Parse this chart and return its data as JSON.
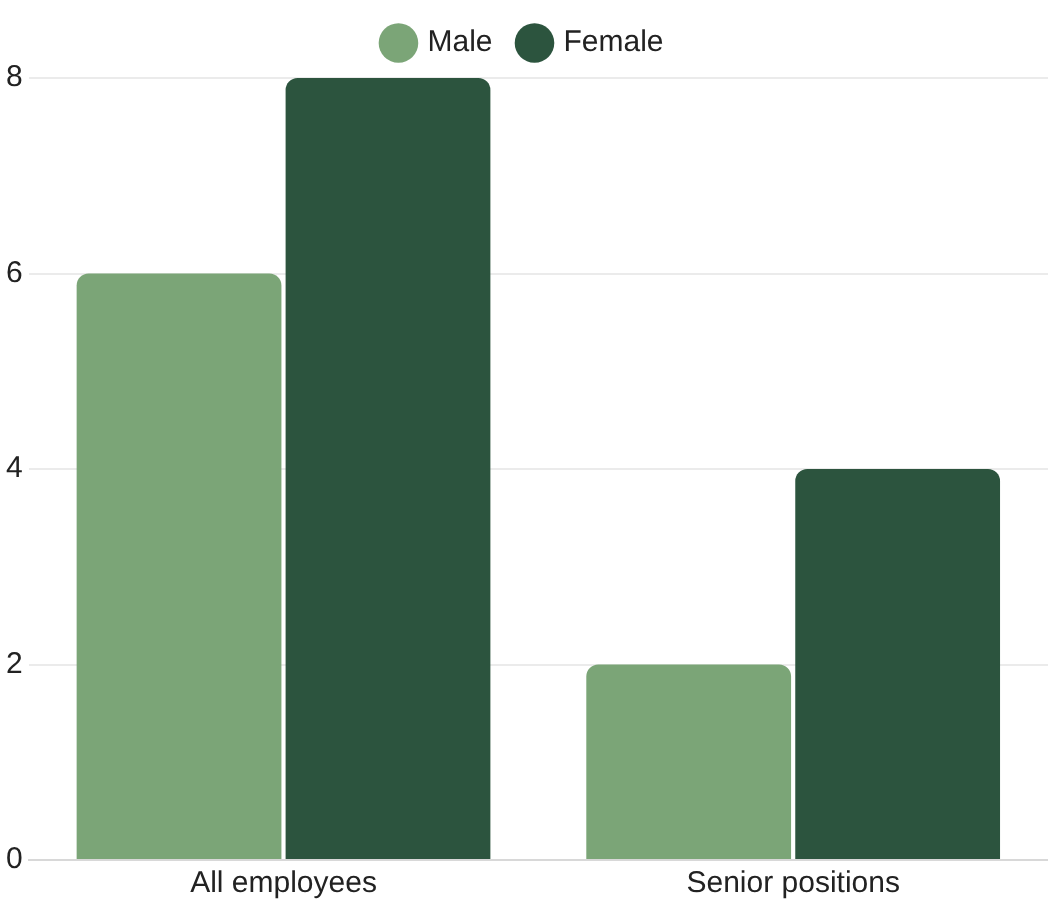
{
  "chart_data": {
    "type": "bar",
    "categories": [
      "All employees",
      "Senior positions"
    ],
    "series": [
      {
        "name": "Male",
        "color": "#7ba577",
        "values": [
          6,
          2
        ]
      },
      {
        "name": "Female",
        "color": "#2c543e",
        "values": [
          8,
          4
        ]
      }
    ],
    "ylim": [
      0,
      8
    ],
    "yticks": [
      0,
      2,
      4,
      6,
      8
    ],
    "grid": "y",
    "legend": "top"
  }
}
